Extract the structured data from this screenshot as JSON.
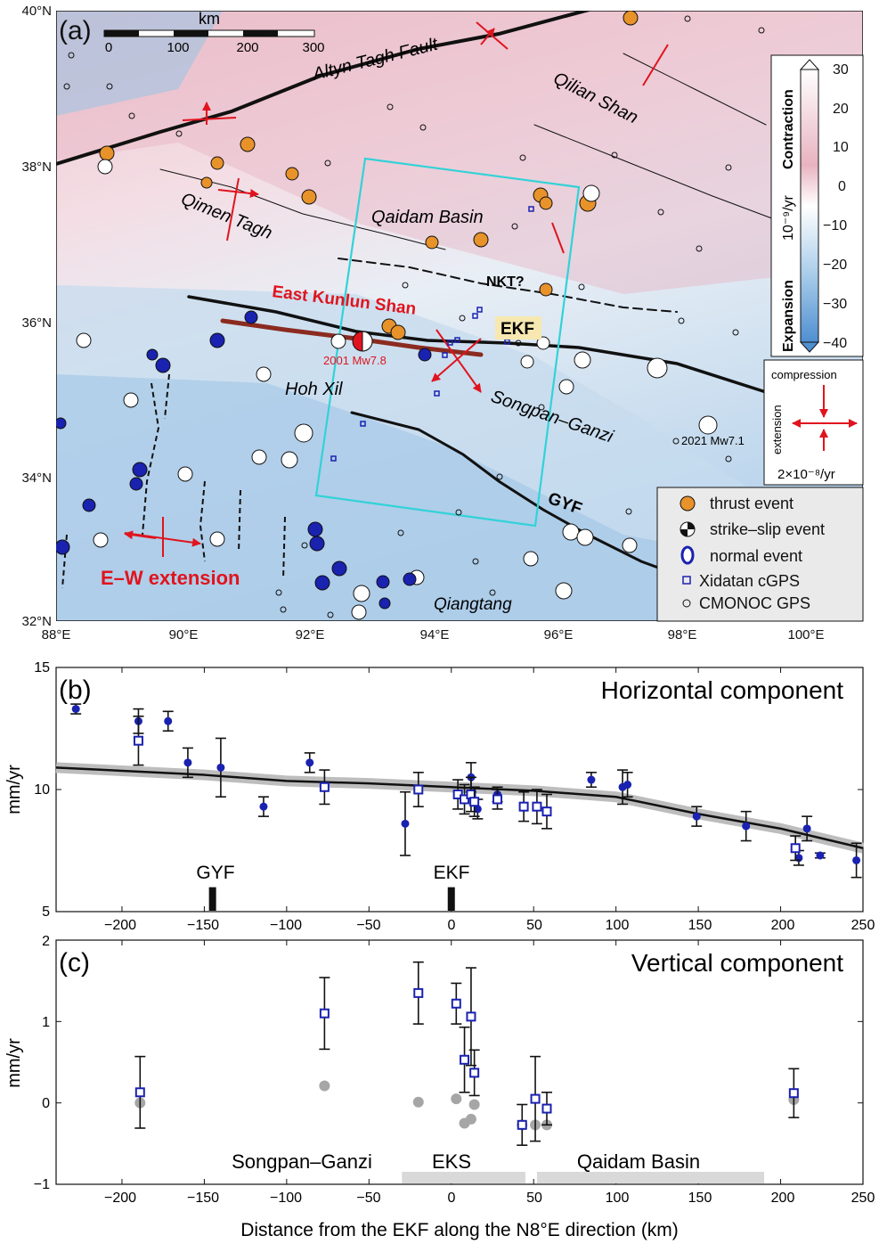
{
  "panel_a": {
    "label": "(a)",
    "lat_labels": [
      "40°N",
      "38°N",
      "36°N",
      "34°N",
      "32°N"
    ],
    "lon_labels": [
      "88°E",
      "90°E",
      "92°E",
      "94°E",
      "96°E",
      "98°E",
      "100°E"
    ],
    "scalebar": {
      "title": "km",
      "ticks": [
        "0",
        "100",
        "200",
        "300"
      ]
    },
    "places": {
      "altyn": "Altyn Tagh Fault",
      "qilian": "Qilian Shan",
      "qimen": "Qimen Tagh",
      "qaidam": "Qaidam Basin",
      "nkt": "NKT?",
      "ekunlun": "East Kunlun Shan",
      "ekf": "EKF",
      "eq2001": "2001 Mw7.8",
      "hohxil": "Hoh Xil",
      "songpan": "Songpan–Ganzi",
      "eq2021": "2021 Mw7.1",
      "gyf": "GYF",
      "ewext": "E–W extension",
      "qiangtang": "Qiangtang"
    },
    "colorbar": {
      "ticks": [
        "30",
        "20",
        "10",
        "0",
        "−10",
        "−20",
        "−30",
        "−40"
      ],
      "contraction": "Contraction",
      "expansion": "Expansion",
      "unit": "10⁻⁹/yr"
    },
    "strain_key": {
      "compression": "compression",
      "extension": "extension",
      "scale": "2×10⁻⁸/yr"
    },
    "legend": [
      "thrust event",
      "strike–slip event",
      "normal event",
      "Xidatan cGPS",
      "CMONOC GPS"
    ],
    "colors": {
      "thrust": "#e8922a",
      "arrow": "#e0141e",
      "box": "#32d2d8",
      "fault": "#111111",
      "gps": "#1a22b0"
    }
  },
  "panel_b": {
    "label": "(b)",
    "title": "Horizontal component",
    "ylabel": "mm/yr",
    "yticks": [
      "5",
      "10",
      "15"
    ],
    "xticks": [
      "−200",
      "−150",
      "−100",
      "−50",
      "0",
      "50",
      "100",
      "150",
      "200",
      "250"
    ],
    "faults": [
      "GYF",
      "EKF"
    ]
  },
  "panel_c": {
    "label": "(c)",
    "title": "Vertical component",
    "ylabel": "mm/yr",
    "yticks": [
      "−1",
      "0",
      "1",
      "2"
    ],
    "xticks": [
      "−200",
      "−150",
      "−100",
      "−50",
      "0",
      "50",
      "100",
      "150",
      "200",
      "250"
    ],
    "regions": [
      "Songpan–Ganzi",
      "EKS",
      "Qaidam Basin"
    ]
  },
  "xlabel": "Distance from the EKF along the N8°E direction (km)",
  "chart_data": [
    {
      "type": "scatter",
      "title": "Horizontal component",
      "xlabel": "Distance from the EKF along the N8°E direction (km)",
      "ylabel": "mm/yr",
      "xlim": [
        -240,
        250
      ],
      "ylim": [
        5,
        15
      ],
      "fault_markers": [
        {
          "name": "GYF",
          "x": -145
        },
        {
          "name": "EKF",
          "x": 0
        }
      ],
      "model_line": {
        "x": [
          -240,
          -150,
          -100,
          -50,
          0,
          50,
          100,
          150,
          200,
          250
        ],
        "y": [
          10.9,
          10.6,
          10.35,
          10.25,
          10.1,
          9.95,
          9.7,
          9.0,
          8.4,
          7.6
        ]
      },
      "series": [
        {
          "marker": "circle",
          "points": [
            {
              "x": -228,
              "y": 13.3,
              "e": 0.2
            },
            {
              "x": -190,
              "y": 12.8,
              "e": 0.5
            },
            {
              "x": -172,
              "y": 12.8,
              "e": 0.4
            },
            {
              "x": -160,
              "y": 11.1,
              "e": 0.6
            },
            {
              "x": -140,
              "y": 10.9,
              "e": 1.2
            },
            {
              "x": -114,
              "y": 9.3,
              "e": 0.4
            },
            {
              "x": -86,
              "y": 11.1,
              "e": 0.4
            },
            {
              "x": -28,
              "y": 8.6,
              "e": 1.3
            },
            {
              "x": 12,
              "y": 10.5,
              "e": 0.6
            },
            {
              "x": 16,
              "y": 9.2,
              "e": 0.4
            },
            {
              "x": 28,
              "y": 9.8,
              "e": 0.3
            },
            {
              "x": 85,
              "y": 10.4,
              "e": 0.3
            },
            {
              "x": 104,
              "y": 10.1,
              "e": 0.7
            },
            {
              "x": 107,
              "y": 10.2,
              "e": 0.5
            },
            {
              "x": 149,
              "y": 8.9,
              "e": 0.4
            },
            {
              "x": 179,
              "y": 8.5,
              "e": 0.6
            },
            {
              "x": 211,
              "y": 7.2,
              "e": 0.3
            },
            {
              "x": 216,
              "y": 8.4,
              "e": 0.5
            },
            {
              "x": 224,
              "y": 7.3,
              "e": 0.1
            },
            {
              "x": 246,
              "y": 7.1,
              "e": 0.7
            }
          ]
        },
        {
          "marker": "square",
          "points": [
            {
              "x": -190,
              "y": 12.0,
              "e": 1.0
            },
            {
              "x": -77,
              "y": 10.1,
              "e": 0.7
            },
            {
              "x": -20,
              "y": 10.0,
              "e": 0.7
            },
            {
              "x": 4,
              "y": 9.8,
              "e": 0.6
            },
            {
              "x": 8,
              "y": 9.6,
              "e": 0.6
            },
            {
              "x": 12,
              "y": 9.8,
              "e": 0.7
            },
            {
              "x": 14,
              "y": 9.5,
              "e": 0.6
            },
            {
              "x": 28,
              "y": 9.6,
              "e": 0.4
            },
            {
              "x": 44,
              "y": 9.3,
              "e": 0.6
            },
            {
              "x": 52,
              "y": 9.3,
              "e": 0.7
            },
            {
              "x": 58,
              "y": 9.1,
              "e": 0.7
            },
            {
              "x": 209,
              "y": 7.6,
              "e": 0.5
            }
          ]
        }
      ]
    },
    {
      "type": "scatter",
      "title": "Vertical component",
      "xlabel": "Distance from the EKF along the N8°E direction (km)",
      "ylabel": "mm/yr",
      "xlim": [
        -240,
        250
      ],
      "ylim": [
        -1,
        2
      ],
      "region_bars": [
        {
          "name": "EKS",
          "x": [
            -30,
            45
          ]
        },
        {
          "name": "Qaidam Basin",
          "x": [
            52,
            190
          ]
        }
      ],
      "series": [
        {
          "marker": "square",
          "points": [
            {
              "x": -189,
              "y": 0.13,
              "e": 0.44
            },
            {
              "x": -77,
              "y": 1.1,
              "e": 0.44
            },
            {
              "x": -20,
              "y": 1.35,
              "e": 0.38
            },
            {
              "x": 3,
              "y": 1.22,
              "e": 0.25
            },
            {
              "x": 8,
              "y": 0.53,
              "e": 0.4
            },
            {
              "x": 12,
              "y": 1.06,
              "e": 0.6
            },
            {
              "x": 14,
              "y": 0.37,
              "e": 0.28
            },
            {
              "x": 43,
              "y": -0.27,
              "e": 0.25
            },
            {
              "x": 51,
              "y": 0.05,
              "e": 0.52
            },
            {
              "x": 58,
              "y": -0.07,
              "e": 0.2
            },
            {
              "x": 208,
              "y": 0.12,
              "e": 0.3
            }
          ]
        },
        {
          "marker": "gray-circle",
          "points": [
            {
              "x": -189,
              "y": 0.0
            },
            {
              "x": -77,
              "y": 0.21
            },
            {
              "x": -20,
              "y": 0.01
            },
            {
              "x": 3,
              "y": 0.05
            },
            {
              "x": 8,
              "y": -0.25
            },
            {
              "x": 12,
              "y": -0.2
            },
            {
              "x": 14,
              "y": -0.02
            },
            {
              "x": 43,
              "y": -0.27
            },
            {
              "x": 51,
              "y": -0.27
            },
            {
              "x": 58,
              "y": -0.27
            },
            {
              "x": 208,
              "y": 0.04
            }
          ]
        }
      ]
    }
  ]
}
